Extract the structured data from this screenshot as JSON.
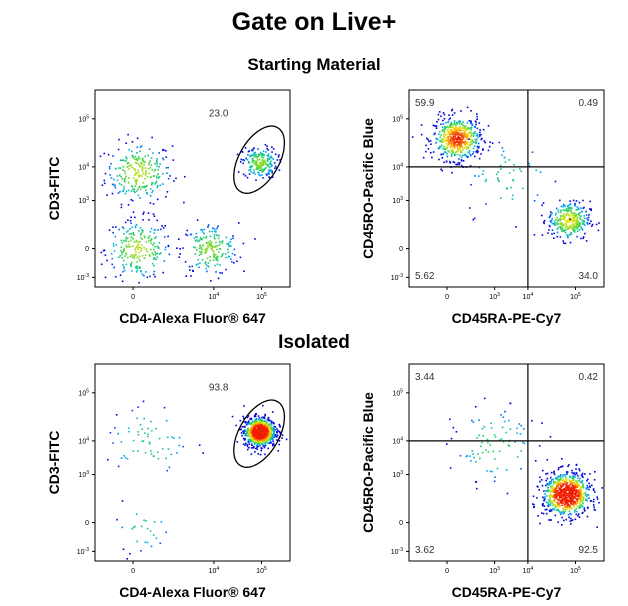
{
  "title": "Gate on Live+",
  "sections": [
    "Starting Material",
    "Isolated"
  ],
  "chart_data": [
    {
      "type": "scatter",
      "section": "Starting Material",
      "xlabel": "CD4-Alexa Fluor® 647",
      "ylabel": "CD3-FITC",
      "x_ticks": [
        "0",
        "10^4",
        "10^5"
      ],
      "y_ticks": [
        "10^-3",
        "0",
        "10^3",
        "10^4",
        "10^5"
      ],
      "gate": {
        "shape": "ellipse",
        "percent": "23.0"
      },
      "populations": [
        {
          "x_log": 2.4,
          "y_log": 3.9,
          "spread": 0.35,
          "weight": 0.28
        },
        {
          "x_log": 2.4,
          "y_log": 2.3,
          "spread": 0.35,
          "weight": 0.27
        },
        {
          "x_log": 3.9,
          "y_log": 2.3,
          "spread": 0.3,
          "weight": 0.22
        },
        {
          "x_log": 4.95,
          "y_log": 4.1,
          "spread": 0.18,
          "weight": 0.23
        }
      ]
    },
    {
      "type": "scatter",
      "section": "Starting Material",
      "xlabel": "CD45RA-PE-Cy7",
      "ylabel": "CD45RO-Pacific Blue",
      "x_ticks": [
        "0",
        "10^3",
        "10^4",
        "10^5"
      ],
      "y_ticks": [
        "10^-3",
        "0",
        "10^3",
        "10^4",
        "10^5"
      ],
      "quadrants": {
        "upper_left": "59.9",
        "upper_right": "0.49",
        "lower_left": "5.62",
        "lower_right": "34.0"
      },
      "populations": [
        {
          "x_log": 2.5,
          "y_log": 4.6,
          "spread": 0.25,
          "weight": 0.6
        },
        {
          "x_log": 4.85,
          "y_log": 2.9,
          "spread": 0.22,
          "weight": 0.34
        },
        {
          "x_log": 3.6,
          "y_log": 3.8,
          "spread": 0.45,
          "weight": 0.06
        }
      ]
    },
    {
      "type": "scatter",
      "section": "Isolated",
      "xlabel": "CD4-Alexa Fluor® 647",
      "ylabel": "CD3-FITC",
      "x_ticks": [
        "0",
        "10^4",
        "10^5"
      ],
      "y_ticks": [
        "10^-3",
        "0",
        "10^3",
        "10^4",
        "10^5"
      ],
      "gate": {
        "shape": "ellipse",
        "percent": "93.8"
      },
      "populations": [
        {
          "x_log": 4.95,
          "y_log": 4.2,
          "spread": 0.17,
          "weight": 0.9
        },
        {
          "x_log": 2.6,
          "y_log": 4.0,
          "spread": 0.45,
          "weight": 0.07
        },
        {
          "x_log": 2.5,
          "y_log": 2.2,
          "spread": 0.3,
          "weight": 0.03
        }
      ]
    },
    {
      "type": "scatter",
      "section": "Isolated",
      "xlabel": "CD45RA-PE-Cy7",
      "ylabel": "CD45RO-Pacific Blue",
      "x_ticks": [
        "0",
        "10^3",
        "10^4",
        "10^5"
      ],
      "y_ticks": [
        "10^-3",
        "0",
        "10^3",
        "10^4",
        "10^5"
      ],
      "quadrants": {
        "upper_left": "3.44",
        "upper_right": "0.42",
        "lower_left": "3.62",
        "lower_right": "92.5"
      },
      "populations": [
        {
          "x_log": 4.8,
          "y_log": 2.9,
          "spread": 0.25,
          "weight": 0.9
        },
        {
          "x_log": 3.3,
          "y_log": 3.9,
          "spread": 0.45,
          "weight": 0.1
        }
      ]
    }
  ]
}
